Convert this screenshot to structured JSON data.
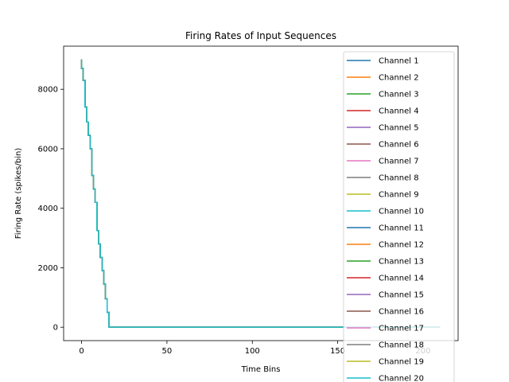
{
  "chart_data": {
    "type": "line",
    "title": "Firing Rates of Input Sequences",
    "xlabel": "Time Bins",
    "ylabel": "Firing Rate (spikes/bin)",
    "xlim": [
      -10.5,
      220.5
    ],
    "ylim": [
      -450,
      9450
    ],
    "xticks": [
      0,
      50,
      100,
      150,
      200
    ],
    "yticks": [
      0,
      2000,
      4000,
      6000,
      8000
    ],
    "grid": false,
    "legend_position": "top-right",
    "series_points": [
      [
        0,
        9000
      ],
      [
        0,
        8700
      ],
      [
        1,
        8700
      ],
      [
        1,
        8300
      ],
      [
        2,
        8300
      ],
      [
        2,
        7400
      ],
      [
        3,
        7400
      ],
      [
        3,
        6900
      ],
      [
        4,
        6900
      ],
      [
        4,
        6450
      ],
      [
        5,
        6450
      ],
      [
        5,
        6000
      ],
      [
        6,
        6000
      ],
      [
        6,
        5100
      ],
      [
        7,
        5100
      ],
      [
        7,
        4650
      ],
      [
        8,
        4650
      ],
      [
        8,
        4200
      ],
      [
        9,
        4200
      ],
      [
        9,
        3250
      ],
      [
        10,
        3250
      ],
      [
        10,
        2800
      ],
      [
        11,
        2800
      ],
      [
        11,
        2350
      ],
      [
        12,
        2350
      ],
      [
        12,
        1900
      ],
      [
        13,
        1900
      ],
      [
        13,
        1450
      ],
      [
        14,
        1450
      ],
      [
        14,
        950
      ],
      [
        15,
        950
      ],
      [
        15,
        500
      ],
      [
        16,
        500
      ],
      [
        16,
        0
      ],
      [
        210,
        0
      ]
    ],
    "series": [
      {
        "name": "Channel 1",
        "color": "#1f77b4"
      },
      {
        "name": "Channel 2",
        "color": "#ff7f0e"
      },
      {
        "name": "Channel 3",
        "color": "#2ca02c"
      },
      {
        "name": "Channel 4",
        "color": "#d62728"
      },
      {
        "name": "Channel 5",
        "color": "#9467bd"
      },
      {
        "name": "Channel 6",
        "color": "#8c564b"
      },
      {
        "name": "Channel 7",
        "color": "#e377c2"
      },
      {
        "name": "Channel 8",
        "color": "#7f7f7f"
      },
      {
        "name": "Channel 9",
        "color": "#bcbd22"
      },
      {
        "name": "Channel 10",
        "color": "#17becf"
      },
      {
        "name": "Channel 11",
        "color": "#1f77b4"
      },
      {
        "name": "Channel 12",
        "color": "#ff7f0e"
      },
      {
        "name": "Channel 13",
        "color": "#2ca02c"
      },
      {
        "name": "Channel 14",
        "color": "#d62728"
      },
      {
        "name": "Channel 15",
        "color": "#9467bd"
      },
      {
        "name": "Channel 16",
        "color": "#8c564b"
      },
      {
        "name": "Channel 17",
        "color": "#e377c2"
      },
      {
        "name": "Channel 18",
        "color": "#7f7f7f"
      },
      {
        "name": "Channel 19",
        "color": "#bcbd22"
      },
      {
        "name": "Channel 20",
        "color": "#17becf"
      }
    ]
  }
}
